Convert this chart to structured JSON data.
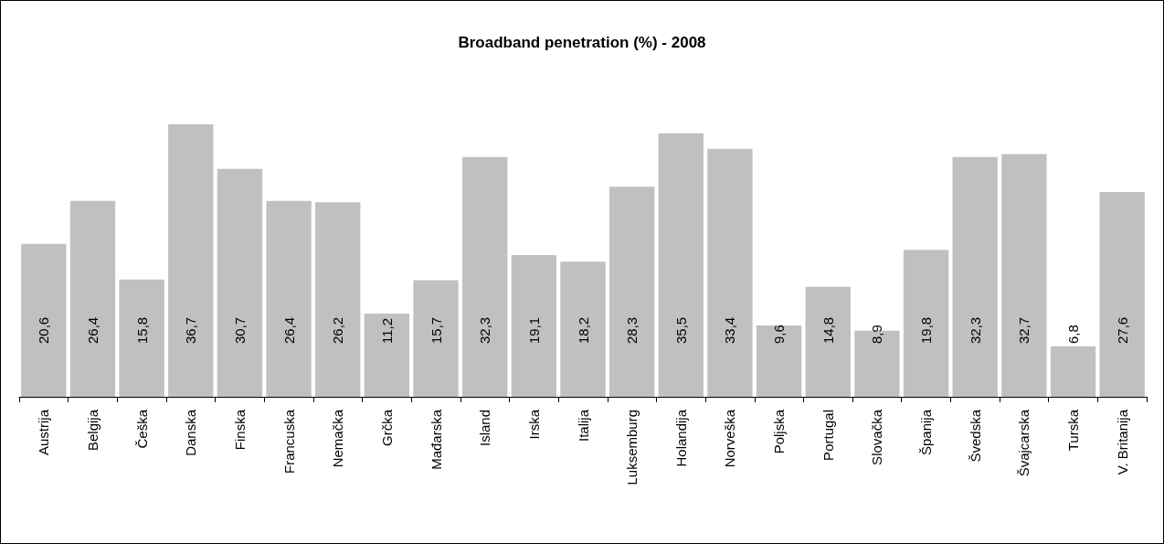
{
  "chart_data": {
    "type": "bar",
    "title": "Broadband penetration (%) - 2008",
    "categories": [
      "Austrija",
      "Belgija",
      "Češka",
      "Danska",
      "Finska",
      "Francuska",
      "Nemačka",
      "Grčka",
      "Mađarska",
      "Island",
      "Irska",
      "Italija",
      "Luksemburg",
      "Holandija",
      "Norveška",
      "Poljska",
      "Portugal",
      "Slovačka",
      "Španija",
      "Švedska",
      "Švajcarska",
      "Turska",
      "V. Britanija"
    ],
    "values": [
      20.6,
      26.4,
      15.8,
      36.7,
      30.7,
      26.4,
      26.2,
      11.2,
      15.7,
      32.3,
      19.1,
      18.2,
      28.3,
      35.5,
      33.4,
      9.6,
      14.8,
      8.9,
      19.8,
      32.3,
      32.7,
      6.8,
      27.6
    ],
    "value_labels": [
      "20,6",
      "26,4",
      "15,8",
      "36,7",
      "30,7",
      "26,4",
      "26,2",
      "11,2",
      "15,7",
      "32,3",
      "19,1",
      "18,2",
      "28,3",
      "35,5",
      "33,4",
      "9,6",
      "14,8",
      "8,9",
      "19,8",
      "32,3",
      "32,7",
      "6,8",
      "27,6"
    ],
    "color": "#c0c0c0",
    "grid": false
  }
}
